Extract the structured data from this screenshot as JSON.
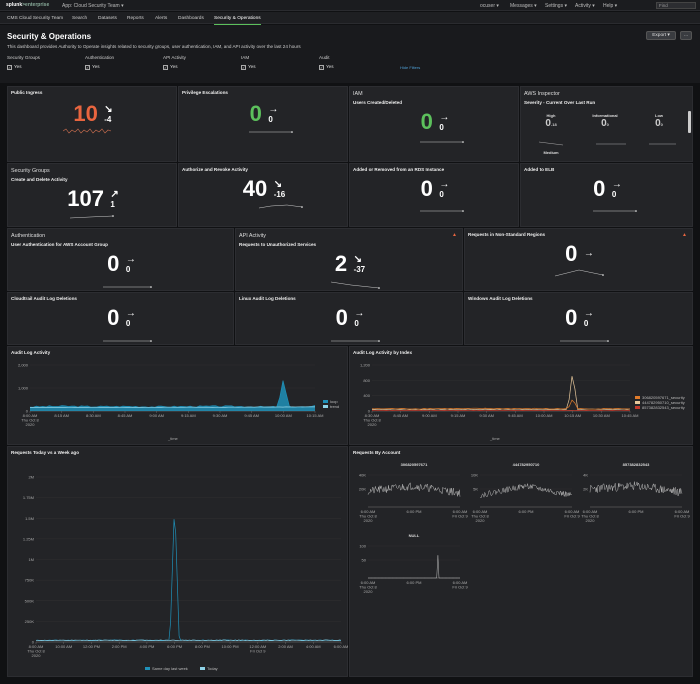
{
  "topbar": {
    "logo_a": "splunk",
    "logo_b": ">enterprise",
    "app": "App: Cloud Security Team ▾",
    "user": "ocuser ▾",
    "messages": "Messages ▾",
    "settings": "Settings ▾",
    "activity": "Activity ▾",
    "help": "Help ▾",
    "find": "Find"
  },
  "nav": {
    "items": [
      "CMS Cloud Security Team",
      "Search",
      "Datasets",
      "Reports",
      "Alerts",
      "Dashboards",
      "Security & Operations"
    ],
    "active": 6
  },
  "dashboard": {
    "title": "Security & Operations",
    "description": "This dashboard provides Authority to Operate insights related to security groups, user authentication, IAM, and API activity over the last 24 hours",
    "export": "Export ▾",
    "more": "..."
  },
  "filters": [
    {
      "label": "Security Groups",
      "value": "Yes"
    },
    {
      "label": "Authentication",
      "value": "Yes"
    },
    {
      "label": "API Activity",
      "value": "Yes"
    },
    {
      "label": "IAM",
      "value": "Yes"
    },
    {
      "label": "Audit",
      "value": "Yes"
    }
  ],
  "hide_filters": "Hide Filters",
  "colors": {
    "red": "#e8653f",
    "green": "#5cc05c",
    "white": "#ffffff",
    "blue": "#1f90b8",
    "orange": "#e07b2a",
    "tan": "#e6c79a"
  },
  "panels": {
    "public_ingress": {
      "title": "Public Ingress",
      "value": "10",
      "arrow": "↘",
      "delta": "-4",
      "color": "#e8653f"
    },
    "priv_esc": {
      "title": "Privilege Escalations",
      "value": "0",
      "arrow": "→",
      "delta": "0",
      "color": "#5cc05c"
    },
    "iam": {
      "title": "IAM",
      "subtitle": "Users Created/Deleted",
      "value": "0",
      "arrow": "→",
      "delta": "0",
      "color": "#5cc05c"
    },
    "inspector": {
      "title": "AWS Inspector",
      "subtitle": "Severity - Current Over Last Run",
      "items": [
        {
          "label": "High",
          "value": "0",
          "delta": "-18"
        },
        {
          "label": "Informational",
          "value": "0",
          "delta": "0"
        },
        {
          "label": "Low",
          "value": "0",
          "delta": "0"
        },
        {
          "label": "Medium",
          "value": ""
        }
      ]
    },
    "sec_groups": {
      "title": "Security Groups",
      "subtitle": "Create and Delete Activity",
      "value": "107",
      "arrow": "↗",
      "delta": "1"
    },
    "auth_revoke": {
      "title": "Authorize and Revoke Activity",
      "value": "40",
      "arrow": "↘",
      "delta": "-16"
    },
    "rds": {
      "title": "Added or Removed from an RDS Instance",
      "value": "0",
      "arrow": "→",
      "delta": "0"
    },
    "elb": {
      "title": "Added to ELB",
      "value": "0",
      "arrow": "→",
      "delta": "0"
    },
    "authentication": {
      "title": "Authentication",
      "subtitle": "User Authentication for AWS Account Group",
      "value": "0",
      "arrow": "→",
      "delta": "0"
    },
    "api": {
      "title": "API Activity",
      "subtitle": "Requests to Unauthorized Services",
      "value": "2",
      "arrow": "↘",
      "delta": "-37"
    },
    "nonstd": {
      "title": "Requests in Non-Standard Regions",
      "value": "0",
      "arrow": "→",
      "delta": ""
    },
    "cloudtrail": {
      "title": "Cloudtrail Audit Log Deletions",
      "value": "0",
      "arrow": "→",
      "delta": "0"
    },
    "linux": {
      "title": "Linux Audit Log Deletions",
      "value": "0",
      "arrow": "→",
      "delta": "0"
    },
    "windows": {
      "title": "Windows Audit Log Deletions",
      "value": "0",
      "arrow": "→",
      "delta": "0"
    }
  },
  "audit_log": {
    "title": "Audit Log Activity",
    "xlabel": "_time",
    "legend": [
      "loop",
      "trend"
    ]
  },
  "audit_index": {
    "title": "Audit Log Activity by Index",
    "xlabel": "_time",
    "legend": [
      "306820597671_security",
      "444782950710_security",
      "857382832543_security"
    ]
  },
  "requests_week": {
    "title": "Requests Today vs a Week ago",
    "legend": [
      "Same day last week",
      "Today"
    ]
  },
  "requests_account": {
    "title": "Requests By Account",
    "accounts": [
      "306820597671",
      "444782950710",
      "857382832543",
      "NULL"
    ]
  },
  "chart_data": [
    {
      "type": "area",
      "title": "Audit Log Activity",
      "xlabel": "_time",
      "ylabel": "",
      "ylim": [
        0,
        2000
      ],
      "yticks": [
        "2,000",
        "1,000",
        "0"
      ],
      "categories": [
        "8:00 AM Thu Oct 8 2020",
        "8:15 AM",
        "8:30 AM",
        "8:45 AM",
        "9:00 AM",
        "9:15 AM",
        "9:30 AM",
        "9:45 AM",
        "10:00 AM",
        "10:15 AM"
      ],
      "series": [
        {
          "name": "loop",
          "values": [
            180,
            210,
            190,
            200,
            185,
            195,
            205,
            190,
            1400,
            220
          ]
        },
        {
          "name": "trend",
          "values": [
            150,
            155,
            160,
            158,
            162,
            165,
            160,
            170,
            175,
            180
          ]
        }
      ],
      "legend_position": "right"
    },
    {
      "type": "line",
      "title": "Audit Log Activity by Index",
      "xlabel": "_time",
      "ylim": [
        0,
        1200
      ],
      "yticks": [
        "1,200",
        "800",
        "400",
        "0"
      ],
      "categories": [
        "8:30 AM Thu Oct 8 2020",
        "8:45 AM",
        "9:00 AM",
        "9:15 AM",
        "9:30 AM",
        "9:45 AM",
        "10:00 AM",
        "10:15 AM",
        "10:30 AM",
        "10:45 AM"
      ],
      "series": [
        {
          "name": "306820597671_security",
          "values": [
            40,
            45,
            42,
            44,
            43,
            46,
            42,
            1050,
            45,
            44
          ]
        },
        {
          "name": "444782950710_security",
          "values": [
            60,
            58,
            62,
            61,
            64,
            60,
            63,
            320,
            62,
            60
          ]
        },
        {
          "name": "857382832543_security",
          "values": [
            10,
            12,
            11,
            12,
            10,
            11,
            12,
            14,
            11,
            10
          ]
        }
      ],
      "legend_position": "right"
    },
    {
      "type": "line",
      "title": "Requests Today vs a Week ago",
      "ylim": [
        0,
        2000000
      ],
      "yticks": [
        "2M",
        "1.75M",
        "1.5M",
        "1.25M",
        "1M",
        "750K",
        "500K",
        "250K",
        "0"
      ],
      "categories": [
        "8:00 AM Thu Oct 8 2020",
        "10:00 AM",
        "12:00 PM",
        "2:00 PM",
        "4:00 PM",
        "6:00 PM",
        "8:00 PM",
        "10:00 PM",
        "12:00 AM Fri Oct 9",
        "2:00 AM",
        "4:00 AM",
        "6:00 AM"
      ],
      "series": [
        {
          "name": "Same day last week",
          "values": [
            20000,
            21000,
            20500,
            22000,
            21500,
            1720000,
            22000,
            21000,
            20000,
            21500,
            22000,
            21000
          ]
        },
        {
          "name": "Today",
          "values": [
            19000,
            19500,
            20000,
            20500,
            21000,
            21500,
            21000,
            20500,
            20000,
            20500,
            21000,
            20500
          ]
        }
      ],
      "legend_position": "bottom"
    },
    {
      "type": "line",
      "title": "306820597671",
      "yticks": [
        "40K",
        "20K"
      ],
      "categories": [
        "6:00 AM Thu Oct 8 2020",
        "6:00 PM",
        "6:00 AM Fri Oct 9"
      ],
      "series": [
        {
          "values": [
            18000,
            24000,
            16000
          ]
        }
      ]
    },
    {
      "type": "line",
      "title": "444782950710",
      "yticks": [
        "10K",
        "5K"
      ],
      "categories": [
        "6:00 AM Thu Oct 8 2020",
        "6:00 PM",
        "6:00 AM Fri Oct 9"
      ],
      "series": [
        {
          "values": [
            5000,
            9000,
            4800
          ]
        }
      ]
    },
    {
      "type": "line",
      "title": "857382832543",
      "yticks": [
        "4K",
        "2K"
      ],
      "categories": [
        "6:00 AM Thu Oct 8 2020",
        "6:00 PM",
        "6:00 AM Fri Oct 9"
      ],
      "series": [
        {
          "values": [
            2200,
            2600,
            1800
          ]
        }
      ]
    },
    {
      "type": "line",
      "title": "NULL",
      "yticks": [
        "100",
        "50"
      ],
      "categories": [
        "6:00 AM Thu Oct 8 2020",
        "6:00 PM",
        "6:00 AM Fri Oct 9"
      ],
      "series": [
        {
          "values": [
            0,
            100,
            0
          ]
        }
      ]
    }
  ]
}
